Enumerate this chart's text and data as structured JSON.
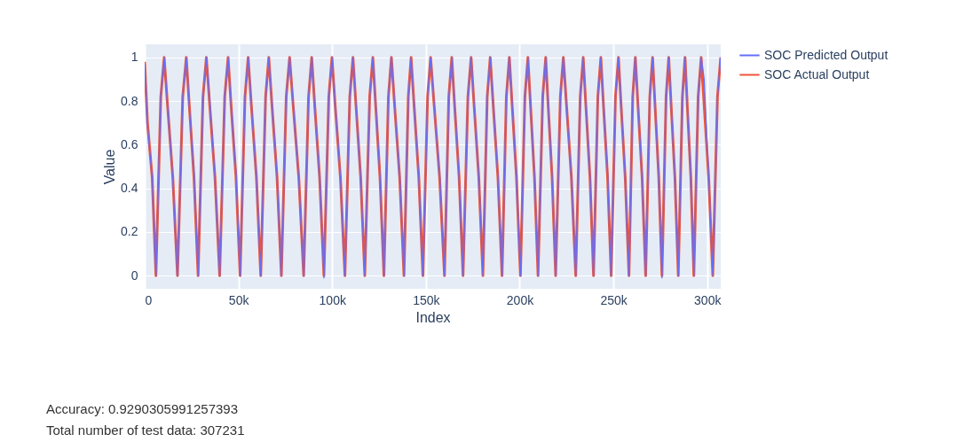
{
  "chart_data": {
    "type": "line",
    "xlabel": "Index",
    "ylabel": "Value",
    "x": [
      0,
      1500,
      4000,
      6000,
      8600,
      10400,
      12200,
      15000,
      17500,
      20300,
      22200,
      23800,
      26300,
      28500,
      31100,
      32900,
      34700,
      37500,
      40000,
      42700,
      44500,
      46100,
      48700,
      50900,
      53500,
      55200,
      56900,
      59600,
      61900,
      64500,
      66200,
      67900,
      70600,
      72900,
      75500,
      77300,
      79200,
      82200,
      84800,
      87400,
      89100,
      90700,
      93300,
      95600,
      98200,
      99900,
      101600,
      104400,
      106800,
      109400,
      111100,
      112700,
      115200,
      117400,
      120000,
      121700,
      123200,
      125500,
      127600,
      130000,
      131600,
      133300,
      136000,
      138300,
      140600,
      142100,
      143700,
      146200,
      148400,
      150900,
      152500,
      154400,
      157300,
      159900,
      162200,
      163800,
      165300,
      167700,
      169800,
      172400,
      174100,
      175700,
      178200,
      180400,
      182700,
      184300,
      185900,
      188400,
      190600,
      192900,
      194500,
      196000,
      198300,
      200400,
      202800,
      204400,
      205800,
      207900,
      209800,
      212300,
      213900,
      215200,
      217300,
      219200,
      221700,
      223300,
      225000,
      227600,
      229900,
      232300,
      233900,
      235300,
      237500,
      239400,
      241700,
      243300,
      244700,
      246900,
      248800,
      251100,
      252700,
      254100,
      256300,
      258300,
      260300,
      261700,
      263100,
      265300,
      267200,
      269400,
      270900,
      272200,
      274200,
      275900,
      278100,
      279500,
      280800,
      282800,
      284600,
      286800,
      288200,
      289400,
      291300,
      292900,
      295200,
      296800,
      298400,
      300800,
      303000,
      305500,
      307230
    ],
    "series": [
      {
        "name": "SOC Predicted Output",
        "color": "#636efa",
        "values": [
          0.97,
          0.68,
          0.45,
          0,
          0.82,
          1,
          0.78,
          0.44,
          0,
          0.82,
          1,
          0.77,
          0.47,
          0,
          0.82,
          1,
          0.8,
          0.45,
          0,
          0.82,
          1,
          0.78,
          0.47,
          0,
          0.82,
          1,
          0.78,
          0.45,
          0,
          0.82,
          1,
          0.78,
          0.46,
          0,
          0.82,
          1,
          0.79,
          0.43,
          0,
          0.82,
          1,
          0.76,
          0.45,
          -0.01,
          0.82,
          1,
          0.78,
          0.45,
          0,
          0.82,
          1,
          0.78,
          0.44,
          0,
          0.82,
          1,
          0.78,
          0.45,
          0,
          0.82,
          1,
          0.78,
          0.45,
          0,
          0.82,
          1,
          0.77,
          0.45,
          0,
          0.82,
          1,
          0.78,
          0.46,
          0,
          0.82,
          1,
          0.78,
          0.45,
          0,
          0.82,
          1,
          0.78,
          0.45,
          0,
          0.82,
          1,
          0.79,
          0.45,
          0,
          0.82,
          1,
          0.78,
          0.44,
          0,
          0.82,
          1,
          0.78,
          0.45,
          0,
          0.82,
          1,
          0.78,
          0.45,
          0,
          0.82,
          1,
          0.76,
          0.45,
          0,
          0.82,
          1,
          0.78,
          0.45,
          0,
          0.82,
          1,
          0.78,
          0.47,
          0,
          0.82,
          1,
          0.78,
          0.45,
          0,
          0.82,
          1,
          0.78,
          0.45,
          0,
          0.82,
          1,
          0.78,
          0.44,
          -0.01,
          0.82,
          1,
          0.78,
          0.45,
          0,
          0.82,
          1,
          0.78,
          0.45,
          0,
          0.82,
          1,
          0.9,
          0.45,
          0,
          0.82,
          1
        ]
      },
      {
        "name": "SOC Actual Output",
        "color": "#ef553b",
        "values": [
          0.98,
          0.7,
          0.45,
          0,
          0.82,
          1,
          0.78,
          0.45,
          0,
          0.82,
          1,
          0.78,
          0.45,
          0,
          0.82,
          1,
          0.78,
          0.45,
          0,
          0.82,
          1,
          0.78,
          0.45,
          0,
          0.82,
          1,
          0.78,
          0.45,
          0,
          0.82,
          1,
          0.78,
          0.45,
          0,
          0.82,
          1,
          0.78,
          0.45,
          0,
          0.82,
          1,
          0.78,
          0.45,
          0,
          0.82,
          1,
          0.78,
          0.45,
          0,
          0.82,
          1,
          0.78,
          0.45,
          0,
          0.82,
          1,
          0.78,
          0.45,
          0,
          0.82,
          1,
          0.78,
          0.45,
          0,
          0.82,
          1,
          0.78,
          0.45,
          0,
          0.82,
          1,
          0.78,
          0.45,
          0,
          0.82,
          1,
          0.78,
          0.45,
          0,
          0.82,
          1,
          0.78,
          0.45,
          0,
          0.82,
          1,
          0.78,
          0.45,
          0,
          0.82,
          1,
          0.78,
          0.45,
          0,
          0.82,
          1,
          0.78,
          0.45,
          0,
          0.82,
          1,
          0.78,
          0.45,
          0,
          0.82,
          1,
          0.78,
          0.45,
          0,
          0.82,
          1,
          0.78,
          0.45,
          0,
          0.82,
          1,
          0.78,
          0.45,
          0,
          0.82,
          1,
          0.78,
          0.45,
          0,
          0.82,
          1,
          0.78,
          0.45,
          0,
          0.82,
          1,
          0.78,
          0.45,
          0,
          0.82,
          1,
          0.78,
          0.45,
          0,
          0.82,
          1,
          0.78,
          0.45,
          0,
          0.82,
          1,
          0.78,
          0.45,
          0,
          0.82,
          1
        ]
      }
    ],
    "xlim": [
      0,
      307230
    ],
    "ylim": [
      -0.06,
      1.06
    ],
    "xticks": [
      0,
      {
        "value": 50000,
        "label": "50k"
      },
      {
        "value": 100000,
        "label": "100k"
      },
      {
        "value": 150000,
        "label": "150k"
      },
      {
        "value": 200000,
        "label": "200k"
      },
      {
        "value": 250000,
        "label": "250k"
      },
      {
        "value": 300000,
        "label": "300k"
      }
    ],
    "yticks": [
      0,
      0.2,
      0.4,
      0.6,
      0.8,
      1
    ],
    "grid": true,
    "legend": "top right",
    "marker": "none",
    "line_style": "solid",
    "annotations": [
      "Accuracy:  0.9290305991257393",
      "Total number of test data:  307231"
    ]
  }
}
